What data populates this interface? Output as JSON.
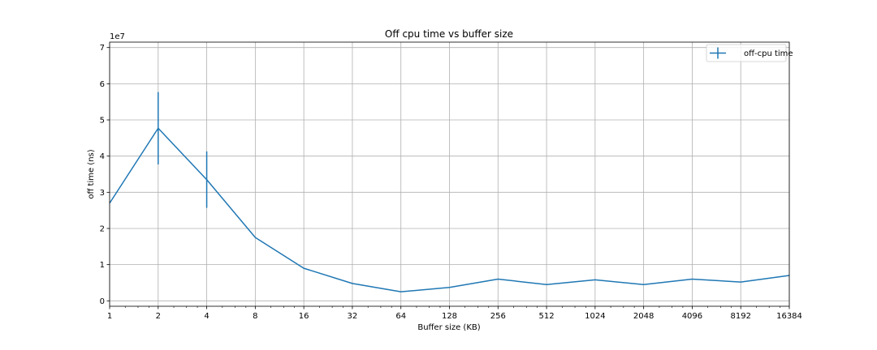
{
  "chart_data": {
    "type": "line",
    "title": "Off cpu time vs buffer size",
    "xlabel": "Buffer size (KB)",
    "ylabel": "off time (ns)",
    "y_offset_label": "1e7",
    "x_scale": "log2",
    "x_ticks": [
      "1",
      "2",
      "4",
      "8",
      "16",
      "32",
      "64",
      "128",
      "256",
      "512",
      "1024",
      "2048",
      "4096",
      "8192",
      "16384"
    ],
    "y_ticks": [
      "0",
      "1",
      "2",
      "3",
      "4",
      "5",
      "6",
      "7"
    ],
    "xlim": [
      1,
      16384
    ],
    "ylim": [
      -0.15,
      7.15
    ],
    "grid": true,
    "legend_position": "top-right",
    "series": [
      {
        "name": "off-cpu time",
        "color": "#1f77b4",
        "x": [
          1,
          2,
          4,
          8,
          16,
          32,
          64,
          128,
          256,
          512,
          1024,
          2048,
          4096,
          8192,
          16384
        ],
        "y": [
          2.7,
          4.77,
          3.35,
          1.75,
          0.9,
          0.48,
          0.25,
          0.37,
          0.6,
          0.45,
          0.58,
          0.45,
          0.6,
          0.52,
          0.7
        ],
        "yerr": [
          0,
          1.0,
          0.78,
          0,
          0,
          0,
          0,
          0,
          0,
          0,
          0,
          0,
          0,
          0,
          0
        ]
      }
    ]
  }
}
